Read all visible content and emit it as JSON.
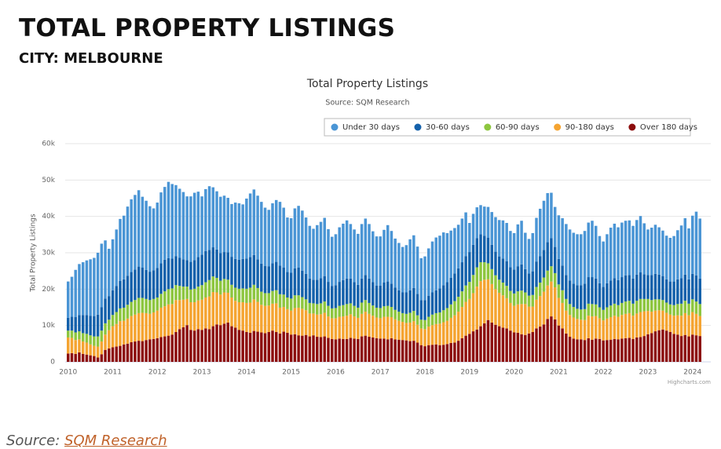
{
  "header": {
    "title": "TOTAL PROPERTY LISTINGS",
    "subtitle": "CITY: MELBOURNE"
  },
  "chart_data": {
    "type": "bar",
    "stacked": true,
    "title": "Total Property Listings",
    "subtitle": "Source: SQM Research",
    "y_axis_label": "Total Property Listings",
    "credit": "Highcharts.com",
    "legend": "top",
    "grid": true,
    "ylim": [
      0,
      60000
    ],
    "yticks": [
      0,
      {
        "value": 10000,
        "label": "10k"
      },
      {
        "value": 20000,
        "label": "20k"
      },
      {
        "value": 30000,
        "label": "30k"
      },
      {
        "value": 40000,
        "label": "40k"
      },
      {
        "value": 50000,
        "label": "50k"
      },
      {
        "value": 60000,
        "label": "60k"
      }
    ],
    "categories": [
      "2010",
      null,
      null,
      null,
      null,
      null,
      null,
      null,
      null,
      null,
      null,
      null,
      "2011",
      null,
      null,
      null,
      null,
      null,
      null,
      null,
      null,
      null,
      null,
      null,
      "2012",
      null,
      null,
      null,
      null,
      null,
      null,
      null,
      null,
      null,
      null,
      null,
      "2013",
      null,
      null,
      null,
      null,
      null,
      null,
      null,
      null,
      null,
      null,
      null,
      "2014",
      null,
      null,
      null,
      null,
      null,
      null,
      null,
      null,
      null,
      null,
      null,
      "2015",
      null,
      null,
      null,
      null,
      null,
      null,
      null,
      null,
      null,
      null,
      null,
      "2016",
      null,
      null,
      null,
      null,
      null,
      null,
      null,
      null,
      null,
      null,
      null,
      "2017",
      null,
      null,
      null,
      null,
      null,
      null,
      null,
      null,
      null,
      null,
      null,
      "2018",
      null,
      null,
      null,
      null,
      null,
      null,
      null,
      null,
      null,
      null,
      null,
      "2019",
      null,
      null,
      null,
      null,
      null,
      null,
      null,
      null,
      null,
      null,
      null,
      "2020",
      null,
      null,
      null,
      null,
      null,
      null,
      null,
      null,
      null,
      null,
      null,
      "2021",
      null,
      null,
      null,
      null,
      null,
      null,
      null,
      null,
      null,
      null,
      null,
      "2022",
      null,
      null,
      null,
      null,
      null,
      null,
      null,
      null,
      null,
      null,
      null,
      "2023",
      null,
      null,
      null,
      null,
      null,
      null,
      null,
      null,
      null,
      null,
      null,
      "2024",
      null,
      null
    ],
    "series": [
      {
        "name": "Under 30 days",
        "color": "#4a95d5",
        "values": [
          10000,
          11000,
          13000,
          14000,
          14500,
          15000,
          15500,
          16000,
          17000,
          17500,
          16000,
          13000,
          14000,
          15500,
          17000,
          17500,
          19000,
          20000,
          20500,
          21000,
          19500,
          19000,
          18000,
          17000,
          18000,
          19500,
          20000,
          21000,
          20500,
          19500,
          19000,
          18500,
          17500,
          18000,
          18500,
          18000,
          16000,
          17000,
          17500,
          16500,
          16000,
          15500,
          15500,
          15000,
          14500,
          15500,
          15500,
          15000,
          16500,
          17500,
          18000,
          17500,
          17000,
          16000,
          15500,
          16500,
          17000,
          17500,
          16500,
          15000,
          15000,
          16500,
          17000,
          16500,
          15500,
          14500,
          14000,
          15000,
          15500,
          16000,
          14500,
          13500,
          14000,
          15000,
          15500,
          16000,
          15000,
          14500,
          14000,
          15000,
          15500,
          15000,
          14000,
          13500,
          13500,
          14500,
          15500,
          14500,
          13500,
          13000,
          12500,
          13000,
          14000,
          14500,
          13000,
          11500,
          12000,
          13000,
          14000,
          14500,
          14500,
          14500,
          13500,
          13000,
          12500,
          12000,
          12000,
          12000,
          8000,
          8500,
          8500,
          8000,
          8000,
          8500,
          9000,
          9500,
          10000,
          10500,
          10500,
          10000,
          10000,
          11500,
          12000,
          10000,
          9500,
          10500,
          12000,
          13000,
          13500,
          13500,
          12500,
          11000,
          12000,
          13000,
          14000,
          14000,
          14000,
          14000,
          14000,
          14500,
          15000,
          15500,
          14500,
          13000,
          12500,
          13500,
          14500,
          15000,
          14500,
          15000,
          15000,
          15000,
          14500,
          15000,
          15500,
          14000,
          12500,
          13000,
          13500,
          13000,
          12500,
          12000,
          12000,
          12500,
          13500,
          14500,
          15500,
          14000,
          16000,
          17500,
          16500
        ]
      },
      {
        "name": "30-60 days",
        "color": "#1461ab",
        "values": [
          3500,
          3800,
          4200,
          4500,
          5000,
          5200,
          5400,
          5600,
          6000,
          6400,
          6800,
          6500,
          6800,
          7200,
          7600,
          7800,
          8000,
          8200,
          8400,
          8600,
          8300,
          8000,
          7800,
          7900,
          8100,
          8400,
          8700,
          8500,
          8200,
          8000,
          7700,
          7500,
          7300,
          7600,
          7900,
          8100,
          8400,
          8600,
          8300,
          8000,
          7800,
          7600,
          7400,
          7500,
          7700,
          7900,
          8000,
          8100,
          8300,
          8400,
          8200,
          7900,
          7700,
          7500,
          7400,
          7600,
          7800,
          7900,
          7400,
          7000,
          7100,
          7400,
          7600,
          7300,
          7000,
          6700,
          6500,
          6700,
          6900,
          7000,
          6600,
          6200,
          6300,
          6600,
          6900,
          7000,
          6800,
          6500,
          6300,
          6600,
          6900,
          6700,
          6400,
          6100,
          6200,
          6500,
          6700,
          6400,
          6100,
          5900,
          5700,
          5900,
          6200,
          6300,
          5900,
          5400,
          5500,
          5800,
          6100,
          6300,
          6600,
          6900,
          7100,
          7300,
          7600,
          7800,
          8000,
          8100,
          8200,
          8300,
          8000,
          7700,
          7300,
          7000,
          6700,
          6500,
          6400,
          6600,
          6800,
          6500,
          6600,
          6900,
          7200,
          6400,
          6100,
          6500,
          7000,
          7300,
          7600,
          7800,
          7700,
          7200,
          7000,
          6800,
          6600,
          6500,
          6400,
          6500,
          6700,
          7000,
          7300,
          7400,
          7100,
          6600,
          6300,
          6600,
          6900,
          7000,
          6900,
          7100,
          7200,
          7100,
          6900,
          7200,
          7300,
          6800,
          6600,
          6900,
          7000,
          6800,
          6600,
          6400,
          6300,
          6500,
          6800,
          7000,
          7200,
          6700,
          7000,
          7200,
          7000
        ]
      },
      {
        "name": "60-90 days",
        "color": "#8dc63f",
        "values": [
          1900,
          2000,
          2100,
          2200,
          2300,
          2400,
          2500,
          2600,
          2800,
          3000,
          3100,
          2900,
          3100,
          3300,
          3500,
          3600,
          3800,
          3900,
          4000,
          4200,
          4100,
          3900,
          3800,
          3700,
          3600,
          3800,
          4100,
          4200,
          4300,
          4100,
          3900,
          3600,
          3400,
          3500,
          3700,
          3800,
          4000,
          4200,
          4500,
          4300,
          4000,
          3800,
          3700,
          3600,
          3500,
          3600,
          3700,
          3800,
          3900,
          4100,
          4000,
          3800,
          3600,
          3500,
          3400,
          3500,
          3600,
          3700,
          3400,
          3200,
          3300,
          3500,
          3400,
          3200,
          3000,
          2900,
          2800,
          2900,
          3000,
          3100,
          2900,
          2700,
          2800,
          3000,
          3100,
          3200,
          3000,
          2900,
          2800,
          3100,
          3200,
          3000,
          2800,
          2700,
          2800,
          2900,
          3000,
          2800,
          2600,
          2500,
          2400,
          2500,
          2700,
          2800,
          2600,
          2400,
          2500,
          2700,
          2900,
          3000,
          3100,
          3300,
          3500,
          3700,
          3900,
          4100,
          4300,
          4500,
          4700,
          5000,
          5300,
          5200,
          4800,
          4400,
          4100,
          3800,
          3600,
          3500,
          3400,
          3300,
          3400,
          3600,
          3700,
          3200,
          3000,
          3200,
          3500,
          3700,
          3900,
          4100,
          4200,
          3900,
          3700,
          3500,
          3200,
          3000,
          2900,
          2800,
          2800,
          3000,
          3300,
          3400,
          3200,
          3000,
          2900,
          3100,
          3200,
          3300,
          3200,
          3300,
          3400,
          3400,
          3300,
          3500,
          3600,
          3400,
          3300,
          3200,
          3100,
          3000,
          2900,
          2800,
          2800,
          2900,
          3100,
          3300,
          3400,
          3200,
          3500,
          3400,
          3300
        ]
      },
      {
        "name": "90-180 days",
        "color": "#f5a431",
        "values": [
          4400,
          4200,
          3800,
          3600,
          3400,
          3300,
          3000,
          2800,
          3000,
          3500,
          4200,
          5000,
          5800,
          6200,
          6800,
          6500,
          6900,
          7200,
          7400,
          7600,
          7800,
          7400,
          7000,
          7300,
          7600,
          8100,
          8300,
          8600,
          8400,
          8800,
          8000,
          7600,
          7200,
          7600,
          7800,
          7900,
          8300,
          8500,
          9000,
          9400,
          8800,
          8400,
          8600,
          8200,
          7900,
          7400,
          7600,
          7800,
          8000,
          8300,
          8700,
          8200,
          7600,
          7500,
          7300,
          7400,
          7900,
          7100,
          6800,
          6500,
          6600,
          7200,
          7600,
          7400,
          6800,
          6300,
          6000,
          6100,
          6300,
          6500,
          5900,
          5700,
          5800,
          6000,
          6200,
          6400,
          6500,
          6100,
          5800,
          6200,
          6600,
          6300,
          6000,
          5700,
          5600,
          6000,
          6200,
          5800,
          5500,
          5200,
          5000,
          4800,
          5100,
          5400,
          4900,
          4600,
          4700,
          5100,
          5400,
          5600,
          5900,
          6200,
          6400,
          6900,
          7500,
          8000,
          8600,
          9300,
          9600,
          10500,
          11800,
          12400,
          12000,
          11200,
          10600,
          9800,
          9200,
          8900,
          8300,
          7600,
          7300,
          7800,
          8300,
          8500,
          7400,
          7000,
          7900,
          8400,
          9000,
          9200,
          9600,
          8800,
          7600,
          7000,
          6300,
          6000,
          5800,
          5600,
          5400,
          5500,
          6200,
          6400,
          6200,
          5700,
          5500,
          5900,
          6200,
          6400,
          6200,
          6500,
          6700,
          6800,
          6400,
          6600,
          6900,
          6800,
          6400,
          5900,
          5700,
          5500,
          5200,
          4900,
          4800,
          5000,
          5300,
          5600,
          6000,
          5800,
          6200,
          5900,
          5500
        ]
      },
      {
        "name": "Over 180 days",
        "color": "#8c0d0d",
        "values": [
          2300,
          2400,
          2200,
          2600,
          2200,
          2000,
          1800,
          1600,
          1200,
          2100,
          3300,
          3700,
          4000,
          4200,
          4400,
          4800,
          5000,
          5400,
          5600,
          5800,
          5700,
          6000,
          6200,
          6300,
          6500,
          6800,
          7000,
          7200,
          7500,
          8200,
          9000,
          9500,
          10100,
          8800,
          8600,
          9000,
          8800,
          9200,
          9000,
          9800,
          10300,
          10100,
          10500,
          10800,
          9800,
          9400,
          8800,
          8600,
          8200,
          8000,
          8500,
          8300,
          8100,
          7900,
          8200,
          8600,
          8200,
          7800,
          8300,
          8000,
          7500,
          7600,
          7300,
          7200,
          7400,
          7000,
          7300,
          6900,
          6800,
          7000,
          6600,
          6300,
          6200,
          6400,
          6300,
          6300,
          6600,
          6400,
          6300,
          7000,
          7200,
          6900,
          6700,
          6500,
          6400,
          6400,
          6200,
          6500,
          6200,
          6100,
          6000,
          5900,
          5700,
          5800,
          5300,
          4600,
          4300,
          4600,
          4700,
          4800,
          4600,
          4700,
          4900,
          5200,
          5300,
          5800,
          6500,
          7200,
          7700,
          8400,
          8900,
          9800,
          10600,
          11500,
          10800,
          10200,
          9800,
          9400,
          9200,
          8600,
          8100,
          8000,
          7600,
          7400,
          7800,
          8200,
          9200,
          9700,
          10300,
          11800,
          12500,
          11700,
          10000,
          9200,
          7800,
          6900,
          6400,
          6200,
          6200,
          6000,
          6500,
          6100,
          6400,
          6300,
          5900,
          6000,
          6100,
          6300,
          6200,
          6400,
          6500,
          6600,
          6300,
          6700,
          6800,
          7100,
          7600,
          7900,
          8400,
          8700,
          8900,
          8600,
          8200,
          7700,
          7500,
          7100,
          7400,
          7000,
          7500,
          7300,
          7100
        ]
      }
    ]
  },
  "footer": {
    "label": "Source:",
    "link": "SQM Research"
  }
}
